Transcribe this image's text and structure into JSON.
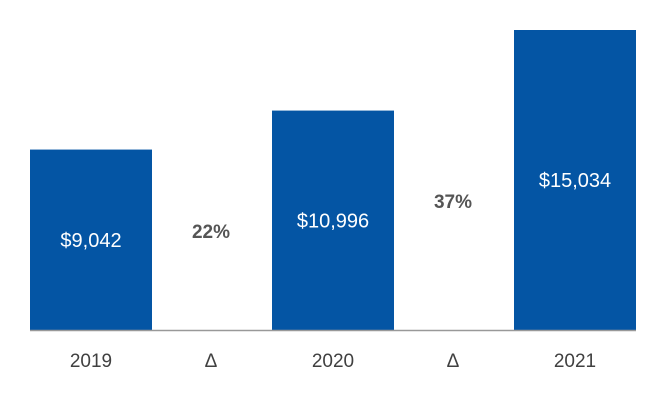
{
  "chart_data": {
    "type": "bar",
    "categories": [
      "2019",
      "Δ",
      "2020",
      "Δ",
      "2021"
    ],
    "values": [
      9042,
      null,
      10996,
      null,
      15034
    ],
    "value_labels": [
      "$9,042",
      "",
      "$10,996",
      "",
      "$15,034"
    ],
    "changes": [
      {
        "between": [
          "2019",
          "2020"
        ],
        "label": "22%",
        "tick": "Δ"
      },
      {
        "between": [
          "2020",
          "2021"
        ],
        "label": "37%",
        "tick": "Δ"
      }
    ],
    "title": "",
    "xlabel": "",
    "ylabel": "",
    "ylim": [
      0,
      15034
    ],
    "grid": false,
    "legend": "none",
    "bar_color": "#0455A4",
    "axis_color": "#999999"
  }
}
